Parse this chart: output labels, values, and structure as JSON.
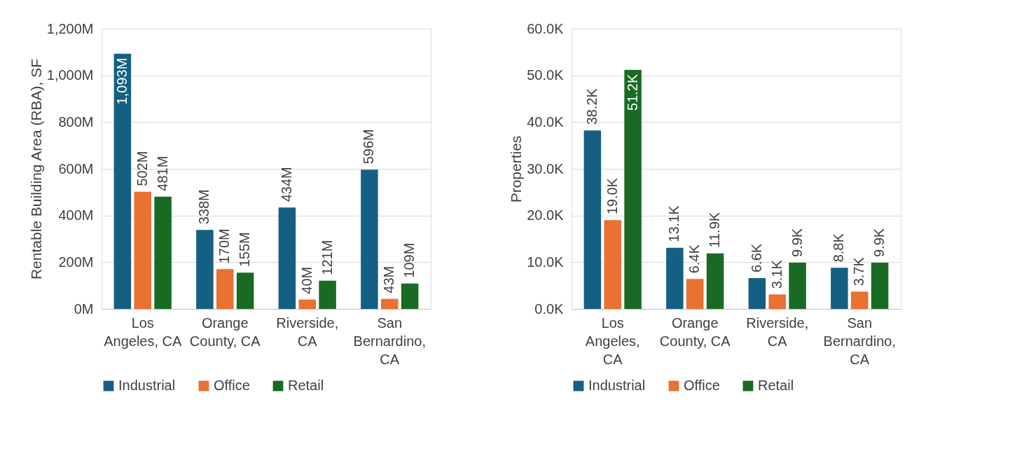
{
  "chart_data": [
    {
      "type": "bar",
      "ylabel": "Rentable Building Area (RBA), SF",
      "categories": [
        "Los Angeles, CA",
        "Orange County, CA",
        "Riverside, CA",
        "San Bernardino, CA"
      ],
      "ylim": [
        0,
        1200
      ],
      "yticks": [
        {
          "value": 0,
          "label": "0M"
        },
        {
          "value": 200,
          "label": "200M"
        },
        {
          "value": 400,
          "label": "400M"
        },
        {
          "value": 600,
          "label": "600M"
        },
        {
          "value": 800,
          "label": "800M"
        },
        {
          "value": 1000,
          "label": "1,000M"
        },
        {
          "value": 1200,
          "label": "1,200M"
        }
      ],
      "grid": "y",
      "legend": "bottom",
      "series": [
        {
          "name": "Industrial",
          "color": "#156082",
          "values": [
            1093,
            338,
            434,
            596
          ],
          "value_labels": [
            "1,093M",
            "338M",
            "434M",
            "596M"
          ]
        },
        {
          "name": "Office",
          "color": "#e97132",
          "values": [
            502,
            170,
            40,
            43
          ],
          "value_labels": [
            "502M",
            "170M",
            "40M",
            "43M"
          ]
        },
        {
          "name": "Retail",
          "color": "#196b24",
          "values": [
            481,
            155,
            121,
            109
          ],
          "value_labels": [
            "481M",
            "155M",
            "121M",
            "109M"
          ]
        }
      ]
    },
    {
      "type": "bar",
      "ylabel": "Properties",
      "categories": [
        "Los Angeles, CA",
        "Orange County, CA",
        "Riverside, CA",
        "San Bernardino, CA"
      ],
      "ylim": [
        0,
        60
      ],
      "yticks": [
        {
          "value": 0,
          "label": "0.0K"
        },
        {
          "value": 10,
          "label": "10.0K"
        },
        {
          "value": 20,
          "label": "20.0K"
        },
        {
          "value": 30,
          "label": "30.0K"
        },
        {
          "value": 40,
          "label": "40.0K"
        },
        {
          "value": 50,
          "label": "50.0K"
        },
        {
          "value": 60,
          "label": "60.0K"
        }
      ],
      "grid": "y",
      "legend": "bottom",
      "series": [
        {
          "name": "Industrial",
          "color": "#156082",
          "values": [
            38.2,
            13.1,
            6.6,
            8.8
          ],
          "value_labels": [
            "38.2K",
            "13.1K",
            "6.6K",
            "8.8K"
          ]
        },
        {
          "name": "Office",
          "color": "#e97132",
          "values": [
            19.0,
            6.4,
            3.1,
            3.7
          ],
          "value_labels": [
            "19.0K",
            "6.4K",
            "3.1K",
            "3.7K"
          ]
        },
        {
          "name": "Retail",
          "color": "#196b24",
          "values": [
            51.2,
            11.9,
            9.9,
            9.9
          ],
          "value_labels": [
            "51.2K",
            "11.9K",
            "9.9K",
            "9.9K"
          ]
        }
      ]
    }
  ]
}
